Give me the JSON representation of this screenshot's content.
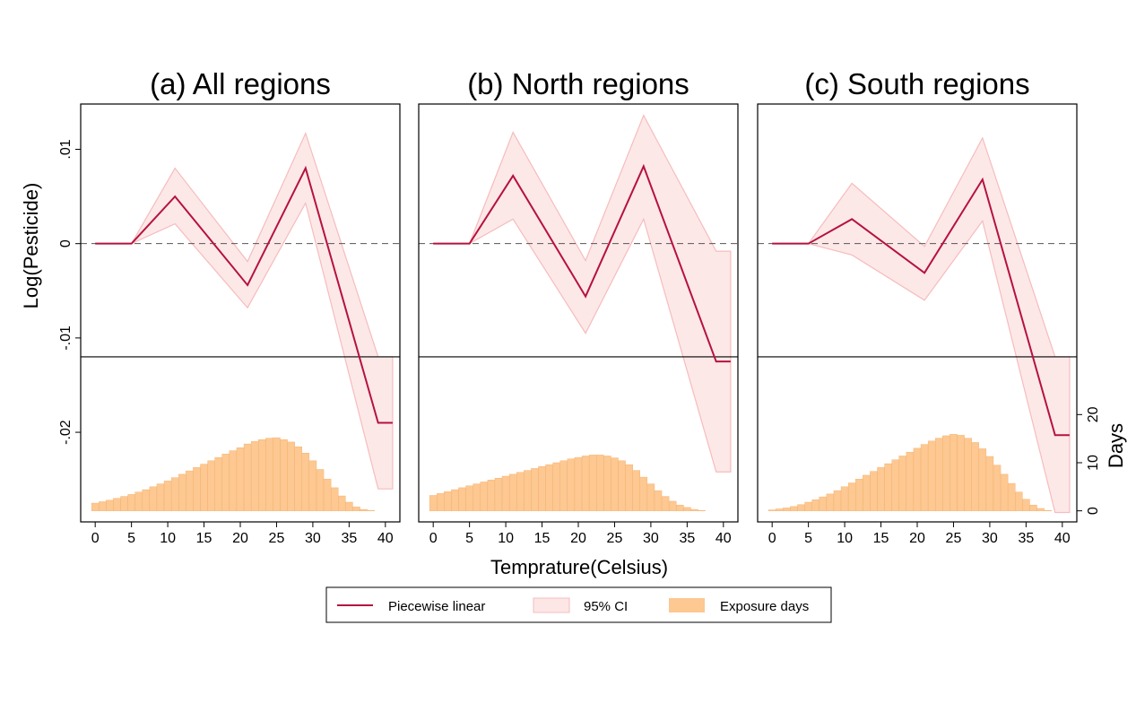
{
  "colors": {
    "line": "#b5123f",
    "ci_fill": "#fde6e6",
    "ci_stroke": "#f6bcbc",
    "bar_fill": "#fdc891",
    "bar_stroke": "#f3ac66",
    "axis": "#000000",
    "zero_line": "#555555"
  },
  "chart_data": {
    "type": "line",
    "xlabel": "Temprature(Celsius)",
    "ylabel": "Log(Pesticide)",
    "ylabel_right": "Days",
    "xlim": [
      -2,
      42
    ],
    "xticks": [
      0,
      5,
      10,
      15,
      20,
      25,
      30,
      35,
      40
    ],
    "ylim": [
      -0.0295,
      0.0148
    ],
    "yticks": [
      -0.02,
      -0.01,
      0,
      0.01
    ],
    "ytick_labels": [
      "-.02",
      "-.01",
      "0",
      ".01"
    ],
    "hist_baseline_y": -0.012,
    "days_ylim": [
      -2.3,
      32
    ],
    "days_ticks": [
      0,
      10,
      20
    ],
    "zero_reference": 0,
    "legend": {
      "line": "Piecewise linear",
      "ci": "95% CI",
      "bars": "Exposure days"
    },
    "panels": [
      {
        "title": "(a) All regions",
        "x": [
          0,
          5,
          11,
          21,
          29,
          39,
          41
        ],
        "estimate": [
          0,
          0,
          0.005,
          -0.0044,
          0.008,
          -0.019,
          -0.019
        ],
        "ci_upper": [
          0,
          0,
          0.008,
          -0.0019,
          0.0117,
          -0.012,
          -0.012
        ],
        "ci_lower": [
          0,
          0,
          0.0021,
          -0.0068,
          0.0043,
          -0.026,
          -0.026
        ],
        "exposure_days": [
          1.6,
          1.9,
          2.2,
          2.6,
          3.0,
          3.4,
          3.9,
          4.4,
          5.0,
          5.6,
          6.2,
          6.9,
          7.6,
          8.3,
          9.0,
          9.7,
          10.4,
          11.1,
          11.8,
          12.5,
          13.1,
          13.9,
          14.4,
          14.8,
          15.1,
          15.2,
          14.8,
          14.3,
          13.3,
          12.0,
          10.4,
          8.6,
          6.6,
          4.8,
          3.1,
          1.8,
          0.8,
          0.3,
          0.1,
          0,
          0
        ]
      },
      {
        "title": "(b) North regions",
        "x": [
          0,
          5,
          11,
          21,
          29,
          39,
          41
        ],
        "estimate": [
          0,
          0,
          0.0072,
          -0.0056,
          0.0082,
          -0.0125,
          -0.0125
        ],
        "ci_upper": [
          0,
          0,
          0.0118,
          -0.0018,
          0.0136,
          -0.0008,
          -0.0008
        ],
        "ci_lower": [
          0,
          0,
          0.0026,
          -0.0095,
          0.0026,
          -0.0242,
          -0.0242
        ],
        "exposure_days": [
          3.2,
          3.6,
          4.0,
          4.4,
          4.8,
          5.2,
          5.6,
          6.0,
          6.4,
          6.8,
          7.2,
          7.6,
          8.0,
          8.4,
          8.8,
          9.2,
          9.6,
          10.0,
          10.4,
          10.8,
          11.1,
          11.4,
          11.6,
          11.6,
          11.4,
          11.0,
          10.4,
          9.6,
          8.4,
          7.0,
          5.6,
          4.2,
          3.0,
          2.0,
          1.2,
          0.7,
          0.3,
          0.1,
          0,
          0,
          0
        ]
      },
      {
        "title": "(c) South regions",
        "x": [
          0,
          5,
          11,
          21,
          29,
          39,
          41
        ],
        "estimate": [
          0,
          0,
          0.0026,
          -0.0031,
          0.0068,
          -0.0203,
          -0.0203
        ],
        "ci_upper": [
          0,
          0,
          0.0064,
          -0.0003,
          0.0112,
          -0.012,
          -0.012
        ],
        "ci_lower": [
          0,
          0,
          -0.0012,
          -0.006,
          0.0024,
          -0.0285,
          -0.0285
        ],
        "exposure_days": [
          0.2,
          0.4,
          0.6,
          0.9,
          1.3,
          1.8,
          2.3,
          2.9,
          3.5,
          4.2,
          5.0,
          5.8,
          6.6,
          7.4,
          8.2,
          9.0,
          9.8,
          10.6,
          11.4,
          12.2,
          13.0,
          13.8,
          14.5,
          15.1,
          15.6,
          15.9,
          15.7,
          15.1,
          14.2,
          12.9,
          11.3,
          9.5,
          7.6,
          5.7,
          3.9,
          2.4,
          1.2,
          0.5,
          0.1,
          0,
          0
        ]
      }
    ]
  }
}
